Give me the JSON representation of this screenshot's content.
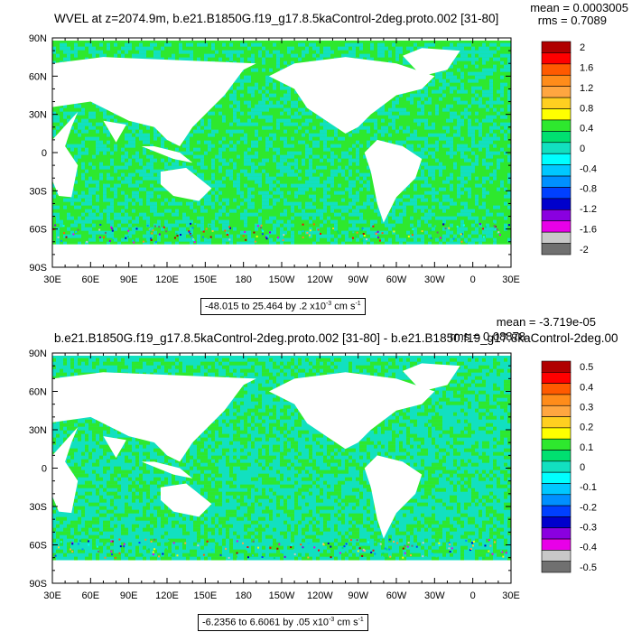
{
  "chart_data": [
    {
      "type": "heatmap",
      "title": "WVEL at z=2074.9m, b.e21.B1850G.f19_g17.8.5kaControl-2deg.proto.002 [31-80]",
      "stats": {
        "mean": "mean = 0.0003005",
        "rms": "rms = 0.7089"
      },
      "y_ticks": [
        "90N",
        "60N",
        "30N",
        "0",
        "30S",
        "60S",
        "90S"
      ],
      "x_ticks": [
        "30E",
        "60E",
        "90E",
        "120E",
        "150E",
        "180",
        "150W",
        "120W",
        "90W",
        "60W",
        "30W",
        "0",
        "30E"
      ],
      "colorbar": {
        "levels": [
          "2",
          "1.6",
          "1.2",
          "0.8",
          "0.4",
          "0",
          "-0.4",
          "-0.8",
          "-1.2",
          "-1.6",
          "-2"
        ],
        "colors": [
          "#b00000",
          "#ff0000",
          "#ff5a00",
          "#ff8c1a",
          "#ffa640",
          "#ffcf20",
          "#ffff00",
          "#2ee82e",
          "#00e070",
          "#12e0c0",
          "#00ffff",
          "#00c8ff",
          "#0090ff",
          "#0040ff",
          "#0000cc",
          "#8a00e0",
          "#e800e8",
          "#c8c8c8",
          "#707070"
        ]
      },
      "range_text": {
        "main": "-48.015 to 25.464 by .2 x10",
        "exp": "-3",
        "unit": " cm s",
        "unit_exp": "-1"
      },
      "field_colors": {
        "dominant": "#2ee82e",
        "secondary": "#12e0c0",
        "land": "#ffffff"
      }
    },
    {
      "type": "heatmap",
      "title": "b.e21.B1850G.f19_g17.8.5kaControl-2deg.proto.002 [31-80] - b.e21.B1850.f19_g17.8kaControl-2deg.00",
      "stats": {
        "mean": "mean = -3.719e-05",
        "rms": "rms = 0.08878"
      },
      "y_ticks": [
        "90N",
        "60N",
        "30N",
        "0",
        "30S",
        "60S",
        "90S"
      ],
      "x_ticks": [
        "30E",
        "60E",
        "90E",
        "120E",
        "150E",
        "180",
        "150W",
        "120W",
        "90W",
        "60W",
        "30W",
        "0",
        "30E"
      ],
      "colorbar": {
        "levels": [
          "0.5",
          "0.4",
          "0.3",
          "0.2",
          "0.1",
          "0",
          "-0.1",
          "-0.2",
          "-0.3",
          "-0.4",
          "-0.5"
        ],
        "colors": [
          "#b00000",
          "#ff0000",
          "#ff5a00",
          "#ff8c1a",
          "#ffa640",
          "#ffcf20",
          "#ffff00",
          "#2ee82e",
          "#00e070",
          "#12e0c0",
          "#00ffff",
          "#00c8ff",
          "#0090ff",
          "#0040ff",
          "#0000cc",
          "#8a00e0",
          "#e800e8",
          "#c8c8c8",
          "#707070"
        ]
      },
      "range_text": {
        "main": "-6.2356 to 6.6061 by .05 x10",
        "exp": "-3",
        "unit": " cm s",
        "unit_exp": "-1"
      },
      "field_colors": {
        "dominant": "#12e0c0",
        "secondary": "#2ee82e",
        "land": "#ffffff"
      }
    }
  ]
}
